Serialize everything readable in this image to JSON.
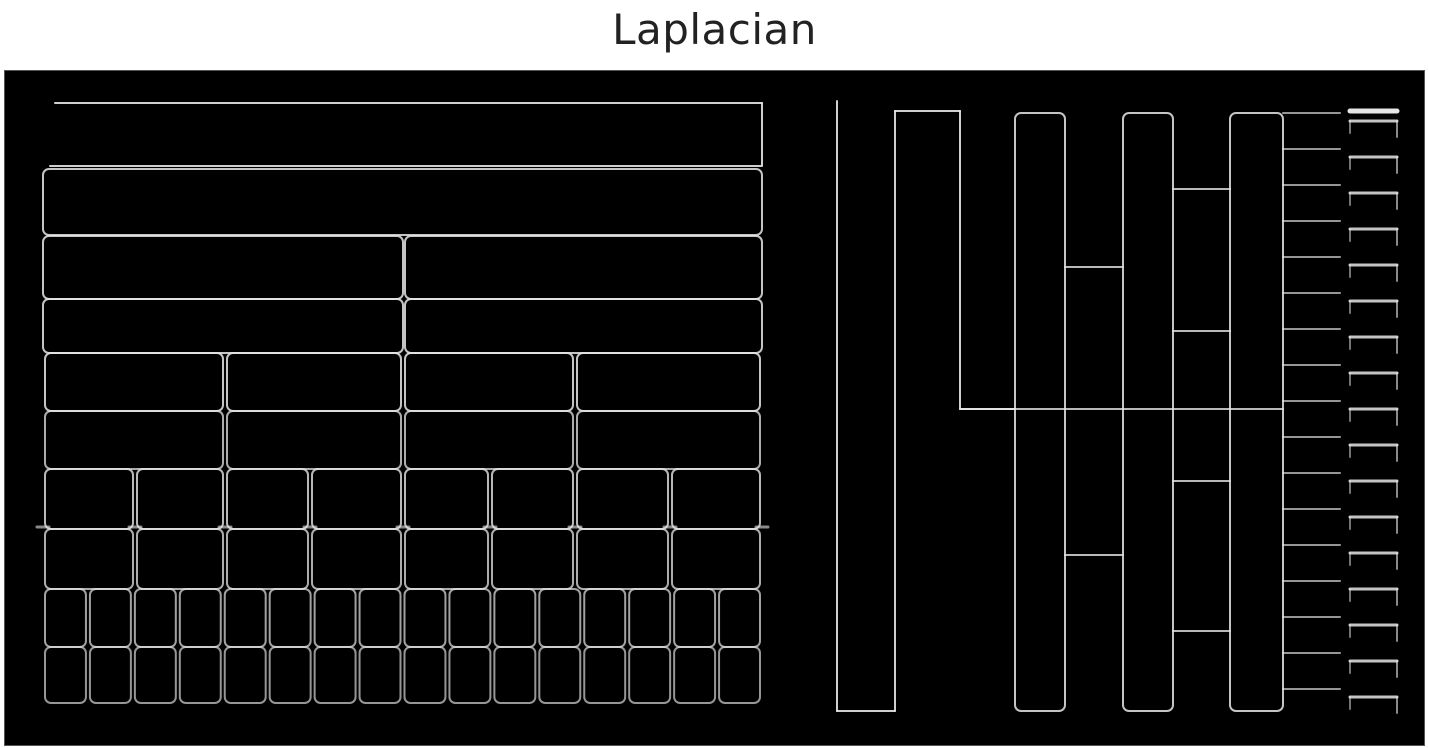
{
  "title": "Laplacian",
  "colors": {
    "background": "#ffffff",
    "panel": "#000000",
    "edge": "#e6e6e6",
    "title": "#222222"
  }
}
